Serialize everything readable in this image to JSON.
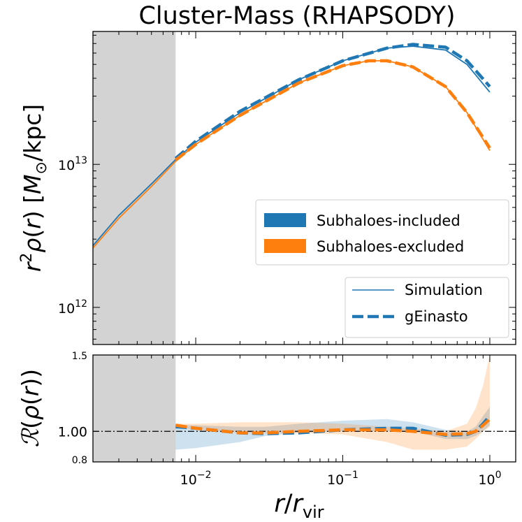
{
  "chart_data": [
    {
      "type": "line",
      "panel": "main",
      "title": "Cluster-Mass (RHAPSODY)",
      "xlabel": "r/r_vir",
      "ylabel": "r^2 rho(r) [M_sun/kpc]",
      "xscale": "log",
      "yscale": "log",
      "xlim": [
        0.002,
        1.5
      ],
      "ylim": [
        550000000000.0,
        85000000000000.0
      ],
      "x_ticks": [
        {
          "value": 0.01,
          "base": "10",
          "exp": "−2"
        },
        {
          "value": 0.1,
          "base": "10",
          "exp": "−1"
        },
        {
          "value": 1,
          "base": "10",
          "exp": "0"
        }
      ],
      "y_ticks": [
        {
          "value": 1000000000000.0,
          "base": "10",
          "exp": "12"
        },
        {
          "value": 10000000000000.0,
          "base": "10",
          "exp": "13"
        }
      ],
      "shaded_region_x": [
        0.002,
        0.0073
      ],
      "series": [
        {
          "name": "Subhaloes-included",
          "style": "Simulation",
          "color": "#1f77b4",
          "x": [
            0.002,
            0.003,
            0.005,
            0.0073,
            0.01,
            0.02,
            0.05,
            0.1,
            0.2,
            0.3,
            0.5,
            0.7,
            1.0
          ],
          "y": [
            2700000000000.0,
            4400000000000.0,
            7300000000000.0,
            10800000000000.0,
            14300000000000.0,
            23000000000000.0,
            39000000000000.0,
            53000000000000.0,
            65000000000000.0,
            67000000000000.0,
            63000000000000.0,
            50000000000000.0,
            32000000000000.0
          ]
        },
        {
          "name": "Subhaloes-included",
          "style": "gEinasto",
          "color": "#1f77b4",
          "x": [
            0.0073,
            0.01,
            0.02,
            0.05,
            0.1,
            0.2,
            0.3,
            0.5,
            0.7,
            1.0
          ],
          "y": [
            11000000000000.0,
            14500000000000.0,
            23500000000000.0,
            39000000000000.0,
            53000000000000.0,
            65000000000000.0,
            69000000000000.0,
            66000000000000.0,
            53000000000000.0,
            35000000000000.0
          ]
        },
        {
          "name": "Subhaloes-excluded",
          "style": "Simulation",
          "color": "#ff7f0e",
          "x": [
            0.002,
            0.003,
            0.005,
            0.0073,
            0.01,
            0.02,
            0.05,
            0.1,
            0.15,
            0.2,
            0.3,
            0.5,
            0.7,
            1.0
          ],
          "y": [
            2600000000000.0,
            4200000000000.0,
            7000000000000.0,
            10500000000000.0,
            13800000000000.0,
            22000000000000.0,
            37000000000000.0,
            49000000000000.0,
            53000000000000.0,
            53000000000000.0,
            48000000000000.0,
            35000000000000.0,
            23000000000000.0,
            12500000000000.0
          ]
        },
        {
          "name": "Subhaloes-excluded",
          "style": "gEinasto",
          "color": "#ff7f0e",
          "x": [
            0.0073,
            0.01,
            0.02,
            0.05,
            0.1,
            0.15,
            0.2,
            0.3,
            0.5,
            0.7,
            1.0
          ],
          "y": [
            10700000000000.0,
            13800000000000.0,
            22000000000000.0,
            37000000000000.0,
            49000000000000.0,
            53000000000000.0,
            53000000000000.0,
            48000000000000.0,
            35000000000000.0,
            23000000000000.0,
            13000000000000.0
          ]
        }
      ],
      "legend_colors": {
        "entries": [
          {
            "label": "Subhaloes-included",
            "color": "#1f77b4"
          },
          {
            "label": "Subhaloes-excluded",
            "color": "#ff7f0e"
          }
        ],
        "position": "center-right"
      },
      "legend_styles": {
        "entries": [
          {
            "label": "Simulation",
            "linestyle": "solid"
          },
          {
            "label": "gEinasto",
            "linestyle": "dashed"
          }
        ],
        "position": "lower-right"
      }
    },
    {
      "type": "line",
      "panel": "ratio",
      "xlabel": "r/r_vir",
      "ylabel": "R(rho(r))",
      "xscale": "log",
      "yscale": "linear",
      "xlim": [
        0.002,
        1.5
      ],
      "ylim": [
        0.8,
        1.5
      ],
      "y_ticks": [
        "0.8",
        "1.00",
        "1.5"
      ],
      "reference_line": 1.0,
      "series": [
        {
          "name": "Subhaloes-included",
          "color": "#1f77b4",
          "x": [
            0.0073,
            0.01,
            0.02,
            0.03,
            0.05,
            0.1,
            0.2,
            0.3,
            0.5,
            0.7,
            0.8,
            0.9,
            1.0
          ],
          "y": [
            1.03,
            1.02,
            0.99,
            0.985,
            0.99,
            1.01,
            1.02,
            1.02,
            0.975,
            0.98,
            1.0,
            1.05,
            1.1
          ],
          "band_lower": [
            0.88,
            0.89,
            0.93,
            0.97,
            0.99,
            1.0,
            1.0,
            1.0,
            0.95,
            0.95,
            0.97,
            1.0,
            1.04
          ],
          "band_upper": [
            1.04,
            1.04,
            1.03,
            1.03,
            1.05,
            1.07,
            1.08,
            1.06,
            1.01,
            1.0,
            1.03,
            1.1,
            1.16
          ]
        },
        {
          "name": "Subhaloes-excluded",
          "color": "#ff7f0e",
          "x": [
            0.0073,
            0.01,
            0.02,
            0.03,
            0.05,
            0.1,
            0.2,
            0.3,
            0.5,
            0.7,
            0.8,
            0.9,
            1.0
          ],
          "y": [
            1.04,
            1.02,
            0.99,
            0.99,
            1.0,
            1.01,
            1.01,
            1.0,
            0.98,
            0.985,
            1.0,
            1.04,
            1.08
          ],
          "band_lower": [
            1.03,
            1.01,
            0.99,
            0.99,
            0.99,
            0.98,
            0.93,
            0.88,
            0.88,
            0.9,
            0.95,
            1.0,
            1.03
          ],
          "band_upper": [
            1.05,
            1.05,
            1.06,
            1.06,
            1.06,
            1.05,
            1.03,
            1.02,
            1.0,
            1.05,
            1.15,
            1.3,
            1.5
          ]
        }
      ]
    }
  ]
}
